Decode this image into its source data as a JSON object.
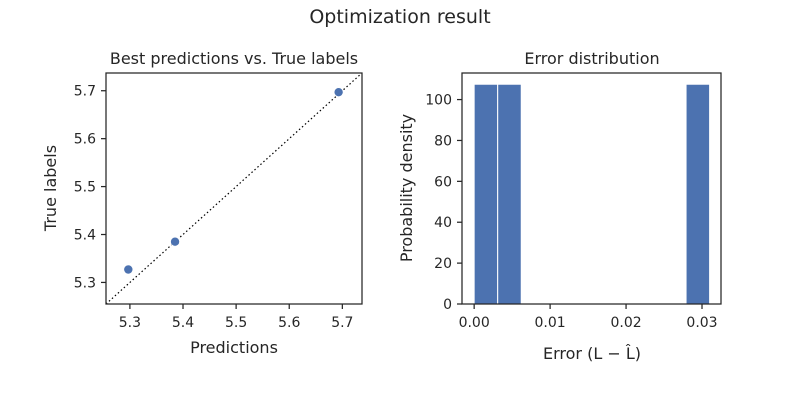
{
  "figure": {
    "suptitle": "Optimization result"
  },
  "colors": {
    "marker": "#4c72b0",
    "bar": "#4c72b0",
    "bar_edge": "#ffffff",
    "diagonal": "#000000",
    "axes": "#262626"
  },
  "chart_data": [
    {
      "type": "scatter",
      "title": "Best predictions vs. True labels",
      "xlabel": "Predictions",
      "ylabel": "True labels",
      "xlim": [
        5.255,
        5.737
      ],
      "ylim": [
        5.255,
        5.737
      ],
      "xticks": [
        5.3,
        5.4,
        5.5,
        5.6,
        5.7
      ],
      "yticks": [
        5.3,
        5.4,
        5.5,
        5.6,
        5.7
      ],
      "tick_format_decimals": 1,
      "points": [
        {
          "x": 5.297,
          "y": 5.327
        },
        {
          "x": 5.385,
          "y": 5.385
        },
        {
          "x": 5.693,
          "y": 5.697
        }
      ],
      "reference_line": {
        "kind": "identity",
        "style": "dotted"
      },
      "grid": false
    },
    {
      "type": "histogram",
      "title": "Error distribution",
      "xlabel": "Error (L − L̂)",
      "ylabel": "Probability density",
      "xlim": [
        -0.0016,
        0.0325
      ],
      "ylim": [
        0,
        113
      ],
      "xticks": [
        0.0,
        0.01,
        0.02,
        0.03
      ],
      "yticks": [
        0,
        20,
        40,
        60,
        80,
        100
      ],
      "xtick_decimals": 2,
      "ytick_decimals": 0,
      "bins": [
        {
          "x0": 0.0,
          "x1": 0.0031,
          "density": 107.5
        },
        {
          "x0": 0.0031,
          "x1": 0.0062,
          "density": 107.5
        },
        {
          "x0": 0.0062,
          "x1": 0.0093,
          "density": 0
        },
        {
          "x0": 0.0093,
          "x1": 0.0124,
          "density": 0
        },
        {
          "x0": 0.0124,
          "x1": 0.0155,
          "density": 0
        },
        {
          "x0": 0.0155,
          "x1": 0.0186,
          "density": 0
        },
        {
          "x0": 0.0186,
          "x1": 0.0217,
          "density": 0
        },
        {
          "x0": 0.0217,
          "x1": 0.0248,
          "density": 0
        },
        {
          "x0": 0.0248,
          "x1": 0.0279,
          "density": 0
        },
        {
          "x0": 0.0279,
          "x1": 0.031,
          "density": 107.5
        }
      ],
      "grid": false
    }
  ]
}
